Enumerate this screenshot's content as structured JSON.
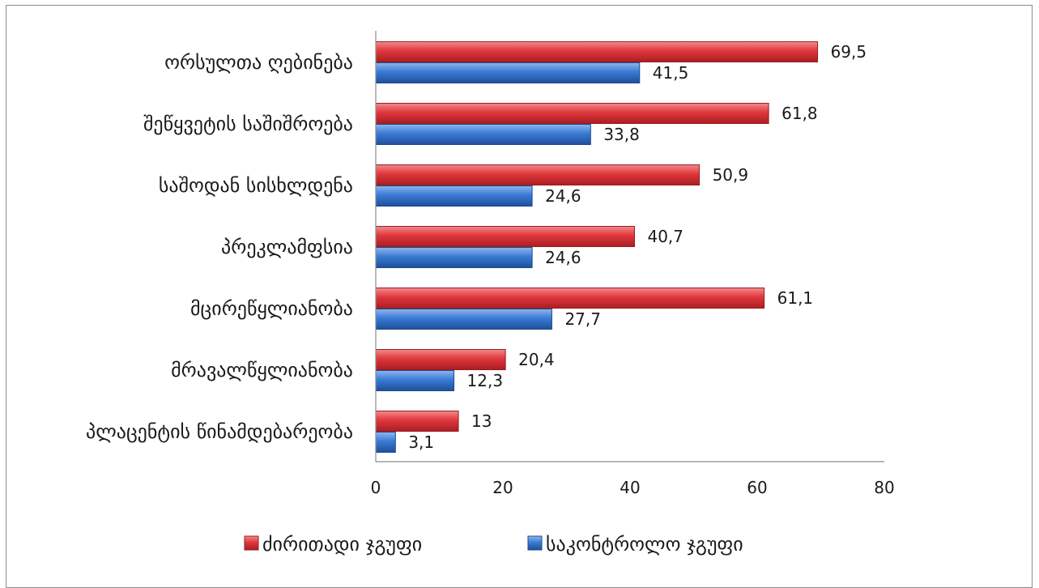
{
  "chart_data": {
    "type": "bar",
    "orientation": "horizontal",
    "categories": [
      "ორსულთა ღებინება",
      "შეწყვეტის საშიშროება",
      "საშოდან სისხლდენა",
      "პრეკლამფსია",
      "მცირეწყლიანობა",
      "მრავალწყლიანობა",
      "პლაცენტის წინამდებარეობა"
    ],
    "series": [
      {
        "name": "ძირითადი ჯგუფი",
        "color": "#e0373c",
        "values": [
          69.5,
          61.8,
          50.9,
          40.7,
          61.1,
          20.4,
          13
        ],
        "labels": [
          "69,5",
          "61,8",
          "50,9",
          "40,7",
          "61,1",
          "20,4",
          "13"
        ]
      },
      {
        "name": "საკონტროლო ჯგუფი",
        "color": "#3a7bd5",
        "values": [
          41.5,
          33.8,
          24.6,
          24.6,
          27.7,
          12.3,
          3.1
        ],
        "labels": [
          "41,5",
          "33,8",
          "24,6",
          "24,6",
          "27,7",
          "12,3",
          "3,1"
        ]
      }
    ],
    "xlim": [
      0,
      80
    ],
    "xticks": [
      "0",
      "20",
      "40",
      "60",
      "80"
    ],
    "title": "",
    "xlabel": "",
    "ylabel": "",
    "grid": false,
    "legend": "bottom"
  }
}
